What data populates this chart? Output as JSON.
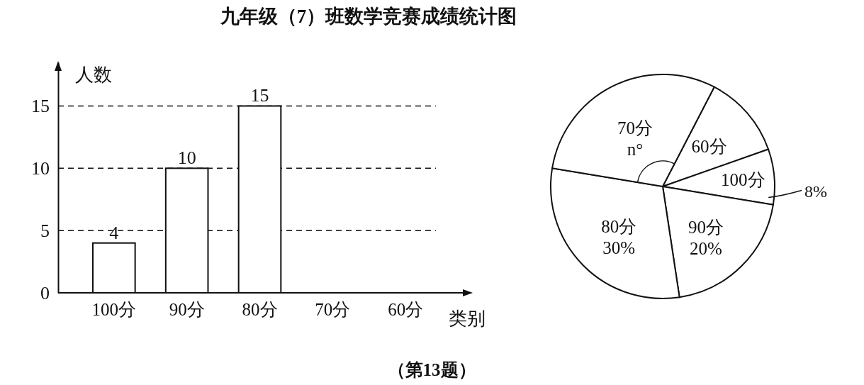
{
  "chart_data": [
    {
      "type": "bar",
      "title": "九年级（7）班数学竞赛成绩统计图",
      "xlabel": "类别",
      "ylabel": "人数",
      "categories": [
        "100分",
        "90分",
        "80分",
        "70分",
        "60分"
      ],
      "values": [
        4,
        10,
        15,
        null,
        null
      ],
      "color": "#ffffff",
      "ylim": [
        0,
        18.5
      ],
      "yticks": [
        0,
        5,
        10,
        15
      ],
      "grid": "y",
      "line_style": "dashed",
      "data_labels": true,
      "annotations": [
        "（第13题）"
      ]
    },
    {
      "type": "pie",
      "categories": [
        "60分",
        "100分",
        "90分",
        "80分",
        "70分"
      ],
      "values": [
        12,
        8,
        20,
        30,
        30
      ],
      "colors": [
        "#ffffff",
        "#ffffff",
        "#ffffff",
        "#ffffff",
        "#ffffff"
      ],
      "value_labels": [
        null,
        "8%",
        "20%",
        "30%",
        "n°"
      ]
    }
  ]
}
